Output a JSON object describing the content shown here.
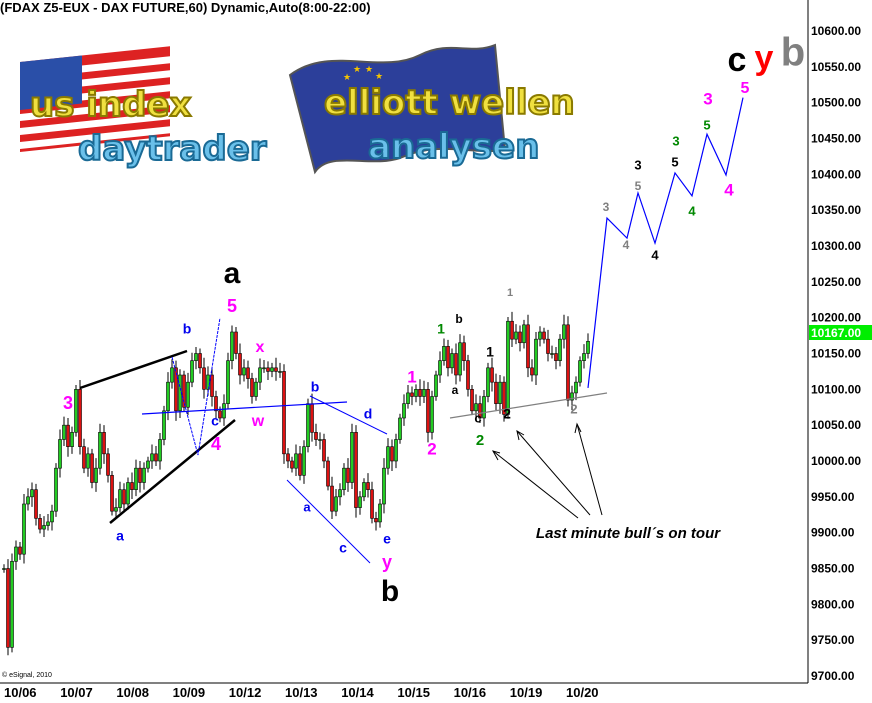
{
  "header": {
    "title": "(FDAX Z5-EUX - DAX FUTURE,60) Dynamic,Auto(8:00-22:00)"
  },
  "copyright": "© eSignal, 2010",
  "logos": {
    "left": {
      "line1": "us index",
      "line2": "daytrader"
    },
    "right": {
      "line1": "elliott wellen",
      "line2": "analysen"
    }
  },
  "colors": {
    "up": "#22cc22",
    "down": "#dd1111",
    "last_price_bg": "#00ee00",
    "wave_line": "#0000ff",
    "magenta": "#ff00ff",
    "blue": "#0000ee",
    "green": "#008800",
    "gray": "#808080",
    "red": "#ff0000"
  },
  "chart_data": {
    "type": "candlestick",
    "title": "(FDAX Z5-EUX - DAX FUTURE,60) Dynamic,Auto(8:00-22:00)",
    "ylim": [
      9700,
      10600
    ],
    "y_ticks": [
      "10600.00",
      "10550.00",
      "10500.00",
      "10450.00",
      "10400.00",
      "10350.00",
      "10300.00",
      "10250.00",
      "10200.00",
      "10150.00",
      "10100.00",
      "10050.00",
      "10000.00",
      "9950.00",
      "9900.00",
      "9850.00",
      "9800.00",
      "9750.00",
      "9700.00"
    ],
    "x_ticks": [
      "10/06",
      "10/07",
      "10/08",
      "10/09",
      "10/12",
      "10/13",
      "10/14",
      "10/15",
      "10/16",
      "10/19",
      "10/20"
    ],
    "last_price": "10167.00",
    "close": [
      9850,
      9740,
      9860,
      9880,
      9870,
      9940,
      9950,
      9960,
      9920,
      9905,
      9910,
      9915,
      9930,
      9990,
      10030,
      10050,
      10020,
      10040,
      10100,
      10020,
      9990,
      10010,
      9970,
      9990,
      10040,
      10010,
      9980,
      9930,
      9935,
      9960,
      9940,
      9970,
      9960,
      9990,
      9970,
      9990,
      10000,
      10010,
      10000,
      10030,
      10070,
      10110,
      10130,
      10070,
      10120,
      10075,
      10110,
      10140,
      10150,
      10130,
      10100,
      10120,
      10090,
      10070,
      10060,
      10080,
      10140,
      10180,
      10150,
      10120,
      10130,
      10115,
      10090,
      10110,
      10130,
      10130,
      10125,
      10130,
      10125,
      10125,
      10010,
      10000,
      9990,
      10010,
      9980,
      10020,
      10080,
      10040,
      10030,
      10030,
      10000,
      9965,
      9930,
      9950,
      9960,
      9990,
      9970,
      10040,
      9935,
      9950,
      9970,
      9960,
      9920,
      9915,
      9940,
      9990,
      10020,
      10000,
      10030,
      10060,
      10080,
      10095,
      10090,
      10100,
      10090,
      10100,
      10040,
      10090,
      10120,
      10140,
      10160,
      10130,
      10150,
      10120,
      10165,
      10140,
      10100,
      10070,
      10080,
      10060,
      10090,
      10130,
      10110,
      10080,
      10110,
      10065,
      10195,
      10170,
      10180,
      10165,
      10190,
      10130,
      10120,
      10170,
      10180,
      10170,
      10150,
      10150,
      10140,
      10170,
      10190,
      10085,
      10095,
      10110,
      10140,
      10150,
      10167
    ],
    "projection": [
      10102,
      10339,
      10311,
      10374,
      10304,
      10402,
      10370,
      10456,
      10399,
      10507
    ],
    "annotations": [
      {
        "text": "a",
        "color": "#000000"
      },
      {
        "text": "b",
        "color": "#000000"
      },
      {
        "text": "c",
        "color": "#000000"
      },
      {
        "text": "y",
        "color": "#ff0000"
      },
      {
        "text": "b",
        "color": "#808080"
      },
      {
        "text": "3",
        "color": "#ff00ff"
      },
      {
        "text": "5",
        "color": "#ff00ff"
      },
      {
        "text": "x",
        "color": "#ff00ff"
      },
      {
        "text": "w",
        "color": "#ff00ff"
      },
      {
        "text": "4",
        "color": "#ff00ff"
      },
      {
        "text": "b",
        "color": "#0000ee"
      },
      {
        "text": "c",
        "color": "#0000ee"
      },
      {
        "text": "a",
        "color": "#0000ee"
      },
      {
        "text": "b",
        "color": "#0000ee"
      },
      {
        "text": "d",
        "color": "#0000ee"
      },
      {
        "text": "a",
        "color": "#0000ee"
      },
      {
        "text": "c",
        "color": "#0000ee"
      },
      {
        "text": "e",
        "color": "#0000ee"
      },
      {
        "text": "y",
        "color": "#ff00ff"
      },
      {
        "text": "1",
        "color": "#ff00ff"
      },
      {
        "text": "2",
        "color": "#ff00ff"
      },
      {
        "text": "1",
        "color": "#008800"
      },
      {
        "text": "b",
        "color": "#000000"
      },
      {
        "text": "a",
        "color": "#000000"
      },
      {
        "text": "1",
        "color": "#000000"
      },
      {
        "text": "c",
        "color": "#000000"
      },
      {
        "text": "2",
        "color": "#008800"
      },
      {
        "text": "2",
        "color": "#000000"
      },
      {
        "text": "1",
        "color": "#808080"
      },
      {
        "text": "2",
        "color": "#808080"
      },
      {
        "text": "3",
        "color": "#808080"
      },
      {
        "text": "4",
        "color": "#808080"
      },
      {
        "text": "3",
        "color": "#000000"
      },
      {
        "text": "5",
        "color": "#808080"
      },
      {
        "text": "4",
        "color": "#000000"
      },
      {
        "text": "3",
        "color": "#008800"
      },
      {
        "text": "5",
        "color": "#000000"
      },
      {
        "text": "4",
        "color": "#008800"
      },
      {
        "text": "3",
        "color": "#ff00ff"
      },
      {
        "text": "5",
        "color": "#008800"
      },
      {
        "text": "4",
        "color": "#ff00ff"
      },
      {
        "text": "5",
        "color": "#ff00ff"
      }
    ],
    "note": "Last minute bull´s on tour"
  }
}
